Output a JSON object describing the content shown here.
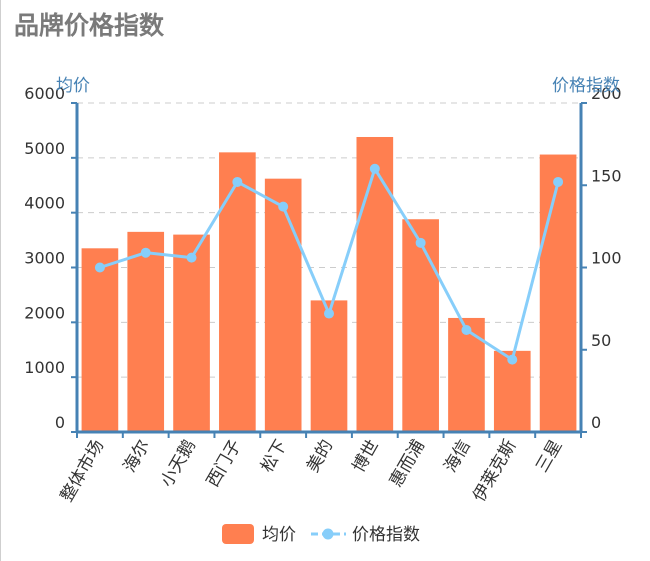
{
  "page": {
    "title": "品牌价格指数"
  },
  "chart_data": {
    "type": "bar",
    "categories": [
      "整体市场",
      "海尔",
      "小天鹅",
      "西门子",
      "松下",
      "美的",
      "博世",
      "惠而浦",
      "海信",
      "伊莱克斯",
      "三星"
    ],
    "series": [
      {
        "name": "均价",
        "type": "bar",
        "axis": "left",
        "values": [
          3350,
          3650,
          3600,
          5100,
          4620,
          2400,
          5380,
          3880,
          2080,
          1480,
          5060
        ]
      },
      {
        "name": "价格指数",
        "type": "line",
        "axis": "right",
        "values": [
          100,
          109,
          106,
          152,
          137,
          72,
          160,
          115,
          62,
          44,
          152
        ]
      }
    ],
    "y_left": {
      "label": "均价",
      "ylim": [
        0,
        6000
      ],
      "ticks": [
        0,
        1000,
        2000,
        3000,
        4000,
        5000,
        6000
      ]
    },
    "y_right": {
      "label": "价格指数",
      "ylim": [
        0,
        200
      ],
      "ticks": [
        0,
        50,
        100,
        150,
        200
      ]
    },
    "grid": true,
    "legend": "bottom-center",
    "colors": {
      "bar": "#ff7f50",
      "line": "#87cefa",
      "axis": "#4682b4",
      "axis_label": "#4682b4",
      "grid": "#cccccc",
      "title": "#7a7a7a"
    }
  }
}
